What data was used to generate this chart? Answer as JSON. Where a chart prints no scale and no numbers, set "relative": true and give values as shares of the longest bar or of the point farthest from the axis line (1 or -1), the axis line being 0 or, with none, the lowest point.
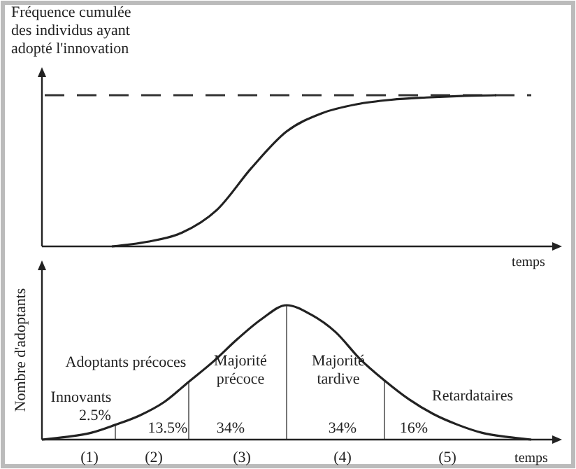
{
  "chart_data": [
    {
      "type": "line",
      "relative": true,
      "ylabel": "Fréquence cumulée\ndes individus ayant\nadopté l'innovation",
      "xlabel": "temps",
      "categories": [
        null,
        null,
        null,
        null,
        null,
        null,
        null,
        null,
        null,
        null,
        null,
        null,
        null,
        null,
        null
      ],
      "series": [
        {
          "color": "#222222",
          "values": [
            null,
            null,
            0,
            0.03,
            0.09,
            0.24,
            0.52,
            0.76,
            0.88,
            0.94,
            0.97,
            0.985,
            0.995,
            1,
            null
          ]
        }
      ],
      "ref_lines": [
        {
          "axis": "y",
          "value": 1,
          "line_style": "dashed",
          "color": "#333333"
        }
      ],
      "marker": "none"
    },
    {
      "type": "line",
      "relative": true,
      "ylabel": "Nombre d'adoptants",
      "xlabel": "temps",
      "categories": [
        null,
        null,
        null,
        null,
        null,
        null,
        null,
        null,
        null,
        null,
        null,
        null,
        null,
        null,
        null,
        null,
        null,
        null,
        null,
        null,
        null
      ],
      "series": [
        {
          "color": "#222222",
          "values": [
            0,
            0.02,
            0.05,
            0.11,
            0.18,
            0.28,
            0.43,
            0.58,
            0.75,
            0.9,
            1,
            0.93,
            0.8,
            0.6,
            0.44,
            0.3,
            0.19,
            0.11,
            0.05,
            0.02,
            0
          ]
        }
      ],
      "annotations": [
        "Innovants",
        "2.5%",
        "Adoptants précoces",
        "13.5%",
        "Majorité\nprécoce",
        "34%",
        "Majorité\ntardive",
        "34%",
        "16%",
        "Retardataires",
        "(1)",
        "(2)",
        "(3)",
        "(4)",
        "(5)"
      ],
      "marker": "none"
    }
  ]
}
